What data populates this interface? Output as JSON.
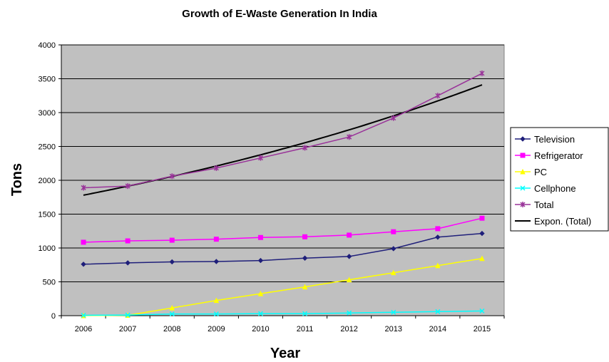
{
  "chart_data": {
    "type": "line",
    "title": "Growth of E-Waste Generation In India",
    "xlabel": "Year",
    "ylabel": "Tons",
    "categories": [
      "2006",
      "2007",
      "2008",
      "2009",
      "2010",
      "2011",
      "2012",
      "2013",
      "2014",
      "2015"
    ],
    "ylim": [
      0,
      4000
    ],
    "yticks": [
      "0",
      "500",
      "1000",
      "1500",
      "2000",
      "2500",
      "3000",
      "3500",
      "4000"
    ],
    "grid": true,
    "legend_position": "right",
    "plot_background": "#c0c0c0",
    "series": [
      {
        "name": "Television",
        "color": "#1f1f7a",
        "marker": "diamond",
        "values": [
          760,
          780,
          795,
          800,
          815,
          850,
          875,
          990,
          1160,
          1215
        ]
      },
      {
        "name": "Refrigerator",
        "color": "#ff00ff",
        "marker": "square",
        "values": [
          1085,
          1105,
          1115,
          1130,
          1155,
          1165,
          1190,
          1240,
          1285,
          1440
        ]
      },
      {
        "name": "PC",
        "color": "#ffff00",
        "marker": "triangle",
        "values": [
          0,
          5,
          115,
          225,
          325,
          425,
          530,
          635,
          740,
          845
        ]
      },
      {
        "name": "Cellphone",
        "color": "#00ffff",
        "marker": "x",
        "values": [
          5,
          10,
          25,
          25,
          30,
          30,
          40,
          50,
          60,
          70
        ]
      },
      {
        "name": "Total",
        "color": "#993399",
        "marker": "star",
        "values": [
          1890,
          1915,
          2060,
          2180,
          2330,
          2480,
          2640,
          2920,
          3250,
          3580
        ]
      }
    ],
    "trendline": {
      "name": "Expon. (Total)",
      "color": "#000000",
      "start": 1780,
      "end": 3410
    }
  }
}
